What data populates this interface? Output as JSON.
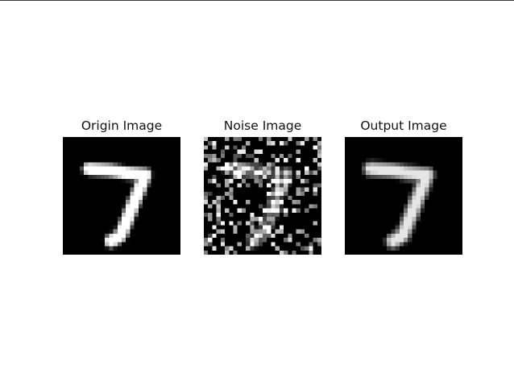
{
  "figure": {
    "panels": [
      {
        "id": "origin",
        "title": "Origin Image",
        "content": "handwritten digit 7, clean"
      },
      {
        "id": "noise",
        "title": "Noise Image",
        "content": "handwritten digit 7 with salt-and-pepper noise"
      },
      {
        "id": "output",
        "title": "Output Image",
        "content": "handwritten digit 7, denoised (slightly blurred)"
      }
    ],
    "colormap": "gray",
    "background_color": "#ffffff",
    "image_background_color": "#000000"
  }
}
